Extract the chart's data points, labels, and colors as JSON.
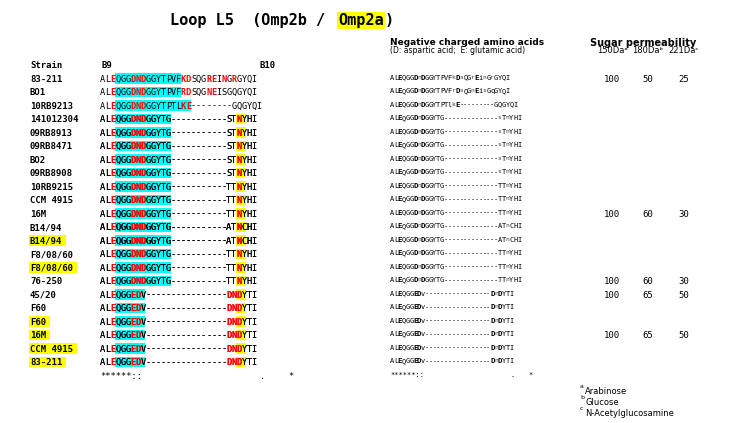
{
  "title_normal": "Loop L5  (Omp2b / ",
  "title_highlight": "Omp2a",
  "title_after": ")",
  "bg_color": "#ffffff",
  "header_row": {
    "strain": "Strain",
    "b9": "B9",
    "b10": "B10"
  },
  "strains": [
    {
      "name": "83-211",
      "highlight": false,
      "seq": "ALEQGGDNDGGYTPVFKDSQGREINGRGYQI",
      "seq2": "ALEQGGDnDGGYTPVFkDsQGrEinGrGYQI",
      "sugar": [
        100,
        50,
        25
      ]
    },
    {
      "name": "BO1",
      "highlight": false,
      "seq": "ALEQGGDNDGGYTPVFRDSQGNEISGQGYQI",
      "seq2": "ALEQGGDnDGGYTPVFrDsQGnEisGqGYQI",
      "sugar": []
    },
    {
      "name": "10RB9213",
      "highlight": false,
      "seq": "ALEQGGDNDGGYTPTLKE--------GQGYQI",
      "seq2": "ALEQGGDnDGGYTPTlkE---------GQGYQI",
      "sugar": []
    },
    {
      "name": "141012304",
      "highlight": false,
      "seq": "ALEQGGDNDGGYTG------------STNYHI",
      "seq2": "ALEQGGDnDGGYTG--------------sTnYHI",
      "sugar": []
    },
    {
      "name": "09RB8913",
      "highlight": false,
      "seq": "ALEQGGDNDGGYTG------------STNYHI",
      "seq2": "ALEQGGDnDGGYTG--------------sTnYHI",
      "sugar": []
    },
    {
      "name": "09RB8471",
      "highlight": false,
      "seq": "ALEQGGDNDGGYTG------------STNYHI",
      "seq2": "ALEQGGDnDGGYTG--------------sTnYHI",
      "sugar": []
    },
    {
      "name": "BO2",
      "highlight": false,
      "seq": "ALEQGGDNDGGYTG------------STNYHI",
      "seq2": "ALEQGGDnDGGYTG--------------sTnYHI",
      "sugar": []
    },
    {
      "name": "09RB8908",
      "highlight": false,
      "seq": "ALEQGGDNDGGYTG------------STNYHI",
      "seq2": "ALEQGGDnDGGYTG--------------sTnYHI",
      "sugar": []
    },
    {
      "name": "10RB9215",
      "highlight": false,
      "seq": "ALEQGGDNDGGYTG------------TTNYHI",
      "seq2": "ALEQGGDnDGGYTG--------------TTnYHI",
      "sugar": []
    },
    {
      "name": "CCM 4915",
      "highlight": false,
      "seq": "ALEQGGDNDGGYTG------------TTNYHI",
      "seq2": "ALEQGGDnDGGYTG--------------TTnYHI",
      "sugar": []
    },
    {
      "name": "16M",
      "highlight": false,
      "seq": "ALEQGGDNDGGYTG------------TTNYHI",
      "seq2": "ALEQGGDnDGGYTG--------------TTnYHI",
      "sugar": [
        100,
        60,
        30
      ]
    },
    {
      "name": "B14/94",
      "highlight": false,
      "seq": "ALEQGGDNDGGYTG------------ATNCHI",
      "seq2": "ALEQGGDnDGGYTG--------------ATnCHI",
      "sugar": []
    },
    {
      "name": "B14/94",
      "highlight": true,
      "seq": "ALEQGGDNDGGYTG------------ATNCHI",
      "seq2": "ALEQGGDnDGGYTG--------------ATnCHI",
      "sugar": []
    },
    {
      "name": "F8/08/60",
      "highlight": false,
      "seq": "ALEQGGDNDGGYTG------------TTNYHI",
      "seq2": "ALEQGGDnDGGYTG--------------TTnYHI",
      "sugar": []
    },
    {
      "name": "F8/08/60",
      "highlight": true,
      "seq": "ALEQGGDNDGGYTG------------TTNYHI",
      "seq2": "ALEQGGDnDGGYTG--------------TTnYHI",
      "sugar": []
    },
    {
      "name": "76-250",
      "highlight": false,
      "seq": "ALEQGGDNDGGYTG------------TTNYHI",
      "seq2": "ALEQGGDnDGGYTG--------------TTnYHI",
      "sugar": [
        100,
        60,
        30
      ]
    },
    {
      "name": "45/20",
      "highlight": false,
      "seq": "ALEQGGEDV-----------------DNDYTI",
      "seq2": "ALEQGGEDv-----------------DnDYTI",
      "sugar": [
        100,
        65,
        50
      ]
    },
    {
      "name": "F60",
      "highlight": false,
      "seq": "ALEQGGEDV-----------------DNDYTI",
      "seq2": "ALEQGGEDv-----------------DnDYTI",
      "sugar": []
    },
    {
      "name": "F60",
      "highlight": true,
      "seq": "ALEQGGEDV-----------------DNDYTI",
      "seq2": "ALEQGGEDv-----------------DnDYTI",
      "sugar": []
    },
    {
      "name": "16M",
      "highlight": true,
      "seq": "ALEQGGEDV-----------------DNDYTI",
      "seq2": "ALEQGGEDv-----------------DnDYTI",
      "sugar": [
        100,
        65,
        50
      ]
    },
    {
      "name": "CCM 4915",
      "highlight": true,
      "seq": "ALEQGGEDV-----------------DNDYTI",
      "seq2": "ALEQGGEDv-----------------DnDYTI",
      "sugar": []
    },
    {
      "name": "83-211",
      "highlight": true,
      "seq": "ALEQGGEDV-----------------DNDYTI",
      "seq2": "ALEQGGEDv-----------------DnDYTI",
      "sugar": []
    }
  ],
  "consensus": "******::                          .      *",
  "consensus2": "******::                                 .      *",
  "footnotes": [
    "aArabinose",
    "bGlucose",
    "cN-Acetylglucosamine"
  ],
  "sugar_header": "Sugar permeability",
  "sugar_subheader": [
    "150Daᵃ",
    "180Daᵇ",
    "221Daᶜ"
  ],
  "neg_header": "Negative charged amino acids",
  "neg_subheader": "(D: aspartic acid;  E: glutamic acid)"
}
